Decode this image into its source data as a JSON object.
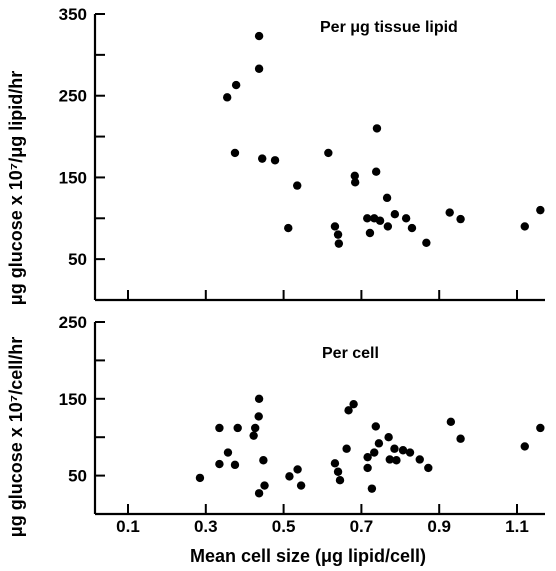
{
  "chart_data": [
    {
      "type": "scatter",
      "title": "Per μg tissue lipid",
      "ylabel": "μg glucose x 10⁷/μg lipid/hr",
      "ylim": [
        0,
        350
      ],
      "yticks": [
        50,
        150,
        250,
        350
      ],
      "xlim": [
        0,
        1.17
      ],
      "points": [
        {
          "x": 0.355,
          "y": 248
        },
        {
          "x": 0.378,
          "y": 263
        },
        {
          "x": 0.375,
          "y": 180
        },
        {
          "x": 0.437,
          "y": 323
        },
        {
          "x": 0.437,
          "y": 283
        },
        {
          "x": 0.445,
          "y": 173
        },
        {
          "x": 0.478,
          "y": 171
        },
        {
          "x": 0.512,
          "y": 88
        },
        {
          "x": 0.535,
          "y": 140
        },
        {
          "x": 0.615,
          "y": 180
        },
        {
          "x": 0.632,
          "y": 90
        },
        {
          "x": 0.64,
          "y": 80
        },
        {
          "x": 0.642,
          "y": 69
        },
        {
          "x": 0.683,
          "y": 152
        },
        {
          "x": 0.684,
          "y": 144
        },
        {
          "x": 0.715,
          "y": 100
        },
        {
          "x": 0.722,
          "y": 82
        },
        {
          "x": 0.733,
          "y": 100
        },
        {
          "x": 0.74,
          "y": 210
        },
        {
          "x": 0.738,
          "y": 157
        },
        {
          "x": 0.748,
          "y": 97
        },
        {
          "x": 0.766,
          "y": 125
        },
        {
          "x": 0.768,
          "y": 90
        },
        {
          "x": 0.786,
          "y": 105
        },
        {
          "x": 0.815,
          "y": 100
        },
        {
          "x": 0.83,
          "y": 88
        },
        {
          "x": 0.867,
          "y": 70
        },
        {
          "x": 0.927,
          "y": 107
        },
        {
          "x": 0.955,
          "y": 99
        },
        {
          "x": 1.12,
          "y": 90
        },
        {
          "x": 1.16,
          "y": 110
        }
      ]
    },
    {
      "type": "scatter",
      "title": "Per cell",
      "ylabel": "μg glucose x 10⁷/cell/hr",
      "xlabel": "Mean cell size (μg lipid/cell)",
      "ylim": [
        0,
        250
      ],
      "yticks": [
        50,
        150,
        250
      ],
      "xlim": [
        0,
        1.17
      ],
      "xticks": [
        "0.1",
        "0.3",
        "0.5",
        "0.7",
        "0.9",
        "1.1"
      ],
      "points": [
        {
          "x": 0.285,
          "y": 47
        },
        {
          "x": 0.335,
          "y": 65
        },
        {
          "x": 0.335,
          "y": 112
        },
        {
          "x": 0.357,
          "y": 80
        },
        {
          "x": 0.375,
          "y": 64
        },
        {
          "x": 0.382,
          "y": 112
        },
        {
          "x": 0.423,
          "y": 102
        },
        {
          "x": 0.427,
          "y": 112
        },
        {
          "x": 0.436,
          "y": 127
        },
        {
          "x": 0.437,
          "y": 150
        },
        {
          "x": 0.437,
          "y": 27
        },
        {
          "x": 0.448,
          "y": 70
        },
        {
          "x": 0.451,
          "y": 37
        },
        {
          "x": 0.515,
          "y": 49
        },
        {
          "x": 0.536,
          "y": 58
        },
        {
          "x": 0.545,
          "y": 37
        },
        {
          "x": 0.632,
          "y": 66
        },
        {
          "x": 0.64,
          "y": 55
        },
        {
          "x": 0.645,
          "y": 44
        },
        {
          "x": 0.662,
          "y": 85
        },
        {
          "x": 0.667,
          "y": 135
        },
        {
          "x": 0.68,
          "y": 143
        },
        {
          "x": 0.716,
          "y": 74
        },
        {
          "x": 0.716,
          "y": 60
        },
        {
          "x": 0.727,
          "y": 33
        },
        {
          "x": 0.733,
          "y": 80
        },
        {
          "x": 0.737,
          "y": 114
        },
        {
          "x": 0.745,
          "y": 92
        },
        {
          "x": 0.77,
          "y": 100
        },
        {
          "x": 0.773,
          "y": 71
        },
        {
          "x": 0.785,
          "y": 85
        },
        {
          "x": 0.79,
          "y": 70
        },
        {
          "x": 0.807,
          "y": 83
        },
        {
          "x": 0.825,
          "y": 80
        },
        {
          "x": 0.85,
          "y": 71
        },
        {
          "x": 0.872,
          "y": 60
        },
        {
          "x": 0.93,
          "y": 120
        },
        {
          "x": 0.955,
          "y": 98
        },
        {
          "x": 1.12,
          "y": 88
        },
        {
          "x": 1.16,
          "y": 112
        }
      ]
    }
  ]
}
